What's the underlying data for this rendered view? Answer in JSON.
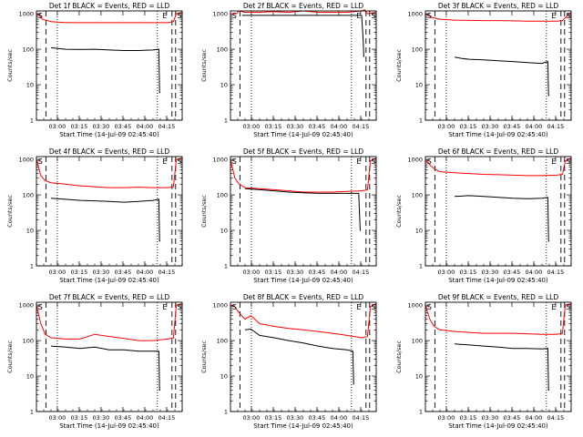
{
  "colors": {
    "events": "#000000",
    "lld": "#ff0000",
    "axes": "#000000",
    "background": "#ffffff"
  },
  "shared": {
    "ylabel": "Counts/sec",
    "xlabel": "Start Time (14-Jul-09 02:45:40)",
    "x_tick_labels": [
      "03:00",
      "03:15",
      "03:30",
      "03:45",
      "04:00",
      "04:15"
    ],
    "x_tick_minutes": [
      14.33,
      29.33,
      44.33,
      59.33,
      74.33,
      89.33
    ],
    "y_tick_labels": [
      "1",
      "10",
      "100",
      "1000"
    ],
    "y_tick_values": [
      1,
      10,
      100,
      1000
    ],
    "y_scale": "log",
    "ylim": [
      1,
      1200
    ],
    "xlim_minutes": [
      0,
      100
    ]
  },
  "chart_data": [
    {
      "type": "line",
      "title": "Det 1f BLACK = Events, RED = LLD",
      "markers": {
        "S_start": 0.5,
        "E": 86.5,
        "S_end": 96.5
      },
      "vlines_dashed": [
        6.5,
        93.0
      ],
      "vlines_dotted": [
        14.33,
        83.0
      ],
      "series": [
        {
          "color": "#ff0000",
          "x": [
            0,
            2,
            4,
            10,
            20,
            30,
            40,
            50,
            60,
            70,
            80,
            90,
            94,
            96,
            100
          ],
          "y": [
            1000,
            900,
            700,
            600,
            560,
            560,
            560,
            560,
            560,
            560,
            560,
            560,
            600,
            1000,
            1100
          ]
        },
        {
          "color": "#000000",
          "x": [
            10,
            15,
            20,
            30,
            40,
            50,
            60,
            70,
            80,
            84,
            84.5,
            85
          ],
          "y": [
            110,
            105,
            100,
            98,
            100,
            95,
            92,
            92,
            95,
            100,
            6,
            6
          ]
        }
      ]
    },
    {
      "type": "line",
      "title": "Det 2f BLACK = Events, RED = LLD",
      "markers": {
        "S_start": 0.5,
        "E": 86.5,
        "S_end": 96.5
      },
      "vlines_dashed": [
        6.5,
        93.0
      ],
      "vlines_dotted": [
        14.33,
        83.0
      ],
      "series": [
        {
          "color": "#ff0000",
          "x": [
            0,
            4,
            6,
            10,
            20,
            30,
            40,
            50,
            60,
            70,
            80,
            90,
            92,
            94,
            100
          ],
          "y": [
            1000,
            1000,
            1200,
            1100,
            1100,
            1150,
            1100,
            1200,
            1100,
            1100,
            1100,
            1200,
            1300,
            1000,
            1100
          ]
        },
        {
          "color": "#000000",
          "x": [
            8,
            20,
            40,
            60,
            80,
            90,
            91,
            91.5
          ],
          "y": [
            900,
            900,
            900,
            900,
            900,
            900,
            200,
            60
          ]
        }
      ]
    },
    {
      "type": "line",
      "title": "Det 3f BLACK = Events, RED = LLD",
      "markers": {
        "S_start": 0.5,
        "E": 86.5,
        "S_end": 96.5
      },
      "vlines_dashed": [
        6.5,
        93.0
      ],
      "vlines_dotted": [
        14.33,
        83.0
      ],
      "series": [
        {
          "color": "#ff0000",
          "x": [
            0,
            4,
            10,
            20,
            30,
            40,
            50,
            60,
            70,
            80,
            90,
            94,
            100
          ],
          "y": [
            1000,
            800,
            700,
            660,
            650,
            640,
            640,
            630,
            620,
            620,
            620,
            640,
            1100
          ]
        },
        {
          "color": "#000000",
          "x": [
            20,
            25,
            30,
            40,
            50,
            60,
            70,
            80,
            84,
            84.5,
            85
          ],
          "y": [
            60,
            55,
            52,
            50,
            47,
            45,
            42,
            40,
            45,
            5,
            5
          ]
        }
      ]
    },
    {
      "type": "line",
      "title": "Det 4f BLACK = Events, RED = LLD",
      "markers": {
        "S_start": 0.5,
        "E": 86.5,
        "S_end": 96.5
      },
      "vlines_dashed": [
        6.5,
        93.0
      ],
      "vlines_dotted": [
        14.33,
        83.0
      ],
      "series": [
        {
          "color": "#ff0000",
          "x": [
            0,
            3,
            6,
            10,
            20,
            30,
            40,
            50,
            60,
            70,
            80,
            90,
            94,
            96,
            100
          ],
          "y": [
            1000,
            350,
            250,
            220,
            200,
            180,
            170,
            160,
            160,
            165,
            160,
            160,
            170,
            1000,
            1100
          ]
        },
        {
          "color": "#000000",
          "x": [
            10,
            20,
            30,
            40,
            50,
            60,
            70,
            80,
            84,
            84.5,
            85
          ],
          "y": [
            80,
            75,
            70,
            68,
            65,
            62,
            65,
            70,
            75,
            5,
            5
          ]
        }
      ]
    },
    {
      "type": "line",
      "title": "Det 5f BLACK = Events, RED = LLD",
      "markers": {
        "S_start": 0.5,
        "E": 86.5,
        "S_end": 96.5
      },
      "vlines_dashed": [
        6.5,
        93.0
      ],
      "vlines_dotted": [
        14.33,
        83.0
      ],
      "series": [
        {
          "color": "#ff0000",
          "x": [
            0,
            3,
            6,
            10,
            20,
            30,
            40,
            50,
            60,
            70,
            80,
            90,
            94,
            96,
            100
          ],
          "y": [
            1000,
            300,
            200,
            160,
            150,
            140,
            130,
            120,
            120,
            120,
            125,
            130,
            140,
            900,
            1100
          ]
        },
        {
          "color": "#000000",
          "x": [
            10,
            20,
            30,
            40,
            50,
            60,
            70,
            80,
            88,
            89,
            89.5
          ],
          "y": [
            150,
            140,
            130,
            120,
            115,
            110,
            110,
            110,
            110,
            10,
            10
          ]
        }
      ]
    },
    {
      "type": "line",
      "title": "Det 6f BLACK = Events, RED = LLD",
      "markers": {
        "S_start": 0.5,
        "E": 86.5,
        "S_end": 96.5
      },
      "vlines_dashed": [
        6.5,
        93.0
      ],
      "vlines_dotted": [
        14.33,
        83.0
      ],
      "series": [
        {
          "color": "#ff0000",
          "x": [
            0,
            3,
            6,
            10,
            20,
            30,
            40,
            50,
            60,
            70,
            80,
            90,
            94,
            96,
            100
          ],
          "y": [
            1000,
            700,
            550,
            450,
            420,
            400,
            380,
            370,
            360,
            350,
            350,
            360,
            380,
            900,
            1100
          ]
        },
        {
          "color": "#000000",
          "x": [
            20,
            30,
            40,
            50,
            60,
            70,
            80,
            84,
            84.5,
            85
          ],
          "y": [
            90,
            95,
            90,
            85,
            80,
            78,
            80,
            85,
            5,
            5
          ]
        }
      ]
    },
    {
      "type": "line",
      "title": "Det 7f BLACK = Events, RED = LLD",
      "markers": {
        "S_start": 0.5,
        "E": 86.5,
        "S_end": 96.5
      },
      "vlines_dashed": [
        6.5,
        93.0
      ],
      "vlines_dotted": [
        14.33,
        83.0
      ],
      "series": [
        {
          "color": "#ff0000",
          "x": [
            0,
            3,
            6,
            10,
            20,
            30,
            40,
            50,
            60,
            70,
            80,
            90,
            94,
            96,
            100
          ],
          "y": [
            1000,
            300,
            150,
            120,
            110,
            110,
            150,
            130,
            115,
            100,
            100,
            110,
            120,
            1000,
            1100
          ]
        },
        {
          "color": "#000000",
          "x": [
            10,
            20,
            30,
            40,
            50,
            60,
            70,
            80,
            84,
            84.5,
            85
          ],
          "y": [
            70,
            65,
            60,
            65,
            55,
            55,
            50,
            50,
            50,
            4,
            4
          ]
        }
      ]
    },
    {
      "type": "line",
      "title": "Det 8f BLACK = Events, RED = LLD",
      "markers": {
        "S_start": 0.5,
        "E": 86.5,
        "S_end": 96.5
      },
      "vlines_dashed": [
        6.5,
        93.0
      ],
      "vlines_dotted": [
        14.33,
        83.0
      ],
      "series": [
        {
          "color": "#ff0000",
          "x": [
            0,
            3,
            6,
            10,
            14,
            20,
            30,
            40,
            50,
            60,
            70,
            80,
            90,
            94,
            96,
            100
          ],
          "y": [
            1000,
            900,
            600,
            400,
            500,
            300,
            250,
            220,
            200,
            180,
            160,
            140,
            120,
            130,
            900,
            1100
          ]
        },
        {
          "color": "#000000",
          "x": [
            10,
            14,
            20,
            30,
            40,
            50,
            60,
            70,
            80,
            84,
            84.5,
            85
          ],
          "y": [
            200,
            210,
            140,
            120,
            100,
            85,
            70,
            60,
            55,
            50,
            6,
            6
          ]
        }
      ]
    },
    {
      "type": "line",
      "title": "Det 9f BLACK = Events, RED = LLD",
      "markers": {
        "S_start": 0.5,
        "E": 86.5,
        "S_end": 96.5
      },
      "vlines_dashed": [
        6.5,
        93.0
      ],
      "vlines_dotted": [
        14.33,
        83.0
      ],
      "series": [
        {
          "color": "#ff0000",
          "x": [
            0,
            3,
            6,
            10,
            20,
            30,
            40,
            50,
            60,
            70,
            80,
            90,
            94,
            96,
            100
          ],
          "y": [
            1000,
            400,
            250,
            200,
            180,
            170,
            160,
            160,
            160,
            155,
            150,
            150,
            160,
            1000,
            1100
          ]
        },
        {
          "color": "#000000",
          "x": [
            20,
            30,
            40,
            50,
            60,
            70,
            80,
            84,
            84.5,
            85
          ],
          "y": [
            80,
            75,
            70,
            65,
            60,
            60,
            58,
            60,
            4,
            4
          ]
        }
      ]
    }
  ]
}
